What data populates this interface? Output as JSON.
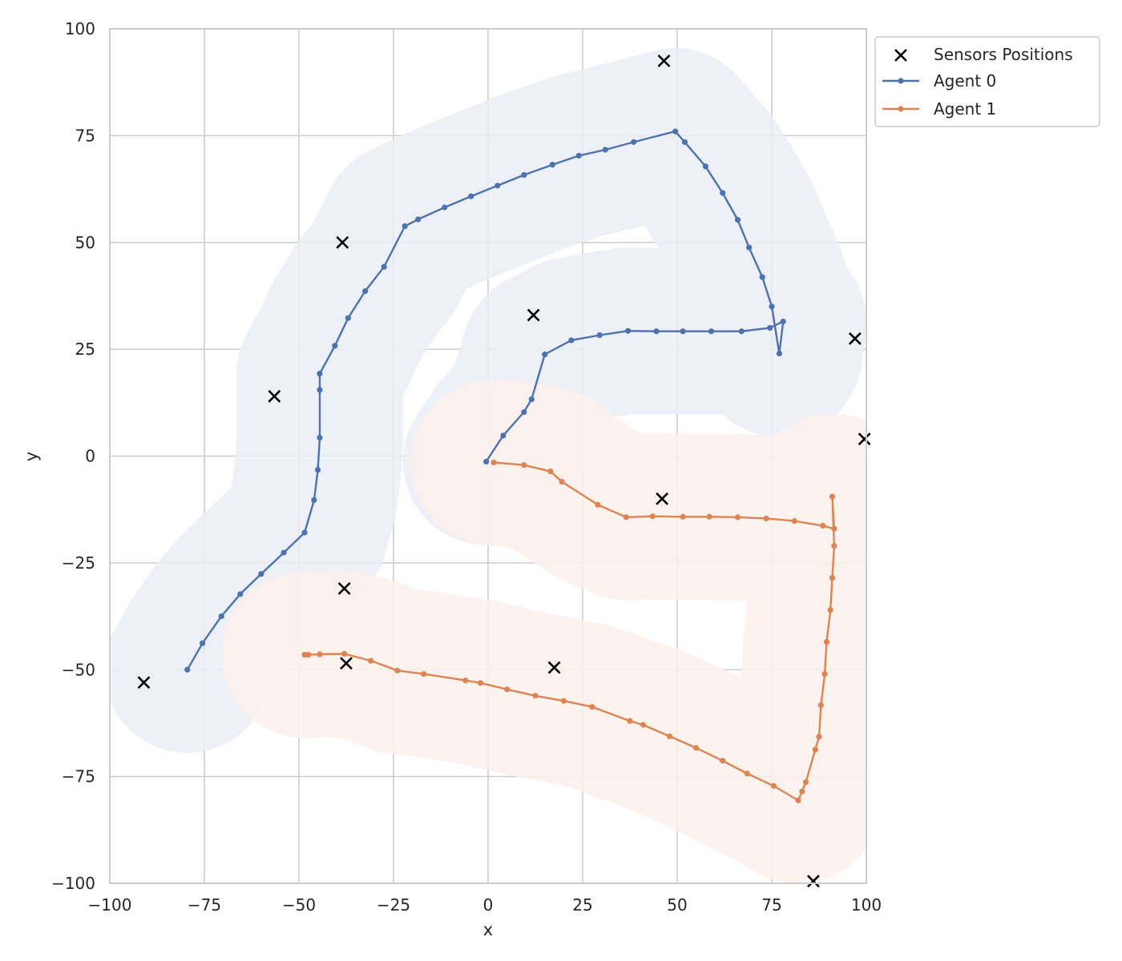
{
  "chart_data": {
    "type": "line",
    "xlabel": "x",
    "ylabel": "y",
    "xlim": [
      -100,
      100
    ],
    "ylim": [
      -100,
      100
    ],
    "xticks": [
      -100,
      -75,
      -50,
      -25,
      0,
      25,
      50,
      75,
      100
    ],
    "yticks": [
      -100,
      -75,
      -50,
      -25,
      0,
      25,
      50,
      75,
      100
    ],
    "xtick_labels": [
      "−100",
      "−75",
      "−50",
      "−25",
      "0",
      "25",
      "50",
      "75",
      "100"
    ],
    "ytick_labels": [
      "−100",
      "−75",
      "−50",
      "−25",
      "0",
      "25",
      "50",
      "75",
      "100"
    ],
    "grid": true,
    "legend_position": "outside top-right",
    "sensors": {
      "name": "Sensors Positions",
      "marker": "x",
      "color": "#000000",
      "points": [
        [
          46.5,
          92.5
        ],
        [
          -38.5,
          50
        ],
        [
          12,
          33
        ],
        [
          97,
          27.5
        ],
        [
          -56.5,
          14
        ],
        [
          99.5,
          4
        ],
        [
          46,
          -10
        ],
        [
          -38,
          -31
        ],
        [
          -37.5,
          -48.5
        ],
        [
          17.5,
          -49.5
        ],
        [
          -91,
          -53
        ],
        [
          86,
          -99.5
        ]
      ]
    },
    "series": [
      {
        "name": "Agent 0",
        "color": "#4c72b0",
        "band_color": "#eaedf5",
        "band_width": 40,
        "points": [
          [
            -79.5,
            -50
          ],
          [
            -75.5,
            -43.8
          ],
          [
            -70.5,
            -37.5
          ],
          [
            -65.5,
            -32.3
          ],
          [
            -60,
            -27.6
          ],
          [
            -54,
            -22.6
          ],
          [
            -48.5,
            -17.9
          ],
          [
            -46,
            -10.3
          ],
          [
            -45,
            -3.2
          ],
          [
            -44.5,
            4.3
          ],
          [
            -44.5,
            15.5
          ],
          [
            -44.5,
            19.3
          ],
          [
            -40.5,
            25.8
          ],
          [
            -37,
            32.3
          ],
          [
            -32.5,
            38.6
          ],
          [
            -27.5,
            44.3
          ],
          [
            -22,
            53.8
          ],
          [
            -18.5,
            55.4
          ],
          [
            -11.5,
            58.2
          ],
          [
            -4.5,
            60.8
          ],
          [
            2.5,
            63.3
          ],
          [
            9.5,
            65.8
          ],
          [
            17,
            68.2
          ],
          [
            24,
            70.3
          ],
          [
            31,
            71.7
          ],
          [
            38.5,
            73.5
          ],
          [
            49.5,
            76
          ],
          [
            52,
            73.5
          ],
          [
            57.5,
            67.8
          ],
          [
            62,
            61.6
          ],
          [
            66,
            55.3
          ],
          [
            69,
            48.8
          ],
          [
            72.5,
            41.9
          ],
          [
            75,
            35
          ],
          [
            77,
            24
          ],
          [
            78,
            31.5
          ],
          [
            74.5,
            30
          ],
          [
            67,
            29.2
          ],
          [
            59,
            29.2
          ],
          [
            51.5,
            29.2
          ],
          [
            44.5,
            29.2
          ],
          [
            37,
            29.3
          ],
          [
            29.5,
            28.3
          ],
          [
            22,
            27.1
          ],
          [
            15,
            23.8
          ],
          [
            11.5,
            13.3
          ],
          [
            9.5,
            10.3
          ],
          [
            4,
            4.8
          ],
          [
            -0.5,
            -1.3
          ]
        ]
      },
      {
        "name": "Agent 1",
        "color": "#dd8452",
        "band_color": "#fbf0eb",
        "band_width": 40,
        "points": [
          [
            1.5,
            -1.5
          ],
          [
            9.5,
            -2.1
          ],
          [
            16.5,
            -3.6
          ],
          [
            19.5,
            -6
          ],
          [
            29,
            -11.4
          ],
          [
            36.5,
            -14.3
          ],
          [
            43.5,
            -14.1
          ],
          [
            51.5,
            -14.2
          ],
          [
            58.5,
            -14.2
          ],
          [
            66,
            -14.3
          ],
          [
            73.5,
            -14.6
          ],
          [
            81,
            -15.2
          ],
          [
            88.5,
            -16.3
          ],
          [
            91.5,
            -17
          ],
          [
            91,
            -9.5
          ],
          [
            91.5,
            -21
          ],
          [
            91,
            -28.5
          ],
          [
            90.5,
            -36
          ],
          [
            89.5,
            -43.5
          ],
          [
            89,
            -51
          ],
          [
            88,
            -58.3
          ],
          [
            87.5,
            -65.7
          ],
          [
            86.5,
            -68.7
          ],
          [
            84,
            -76.3
          ],
          [
            83,
            -78.5
          ],
          [
            82,
            -80.6
          ],
          [
            75.5,
            -77.2
          ],
          [
            68.5,
            -74.3
          ],
          [
            62,
            -71.3
          ],
          [
            55,
            -68.3
          ],
          [
            48,
            -65.6
          ],
          [
            41,
            -62.9
          ],
          [
            37.5,
            -62
          ],
          [
            27.5,
            -58.7
          ],
          [
            20,
            -57.3
          ],
          [
            12.5,
            -56.1
          ],
          [
            5,
            -54.6
          ],
          [
            -2,
            -53.1
          ],
          [
            -6,
            -52.5
          ],
          [
            -17,
            -51
          ],
          [
            -24,
            -50.2
          ],
          [
            -31,
            -47.9
          ],
          [
            -38,
            -46.3
          ],
          [
            -44.5,
            -46.4
          ],
          [
            -47.5,
            -46.5
          ],
          [
            -48.5,
            -46.5
          ]
        ]
      }
    ]
  }
}
